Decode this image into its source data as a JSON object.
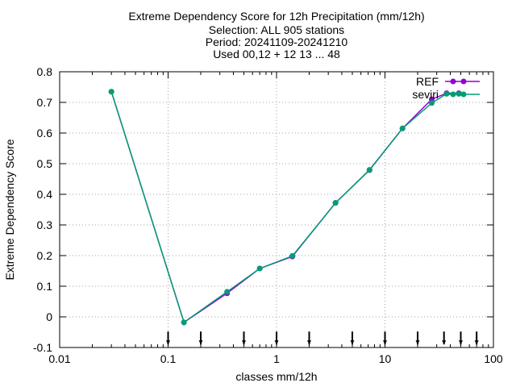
{
  "chart_data": {
    "type": "line",
    "title_lines": [
      "Extreme Dependency Score  for 12h Precipitation (mm/12h)",
      "Selection: ALL    905 stations",
      "Period: 20241109-20241210",
      "Used 00,12 + 12 13 ... 48"
    ],
    "xlabel": "classes mm/12h",
    "ylabel": "Extreme Dependency Score",
    "x_scale": "log",
    "xlim": [
      0.01,
      100
    ],
    "ylim": [
      -0.1,
      0.8
    ],
    "x_ticks": [
      0.01,
      0.1,
      1,
      10,
      100
    ],
    "x_tick_labels": [
      "0.01",
      "0.1",
      "1",
      "10",
      "100"
    ],
    "y_ticks": [
      -0.1,
      0,
      0.1,
      0.2,
      0.3,
      0.4,
      0.5,
      0.6,
      0.7,
      0.8
    ],
    "y_tick_labels": [
      "-0.1",
      "0",
      "0.1",
      "0.2",
      "0.3",
      "0.4",
      "0.5",
      "0.6",
      "0.7",
      "0.8"
    ],
    "grid": true,
    "legend_position": "top-right",
    "class_markers": [
      0.1,
      0.2,
      0.5,
      1,
      2,
      5,
      10,
      20,
      35,
      50,
      70
    ],
    "series": [
      {
        "name": "REF",
        "color": "#9400d3",
        "x": [
          0.03,
          0.14,
          0.35,
          0.7,
          1.4,
          3.5,
          7.2,
          14.5,
          27,
          37,
          48
        ],
        "y": [
          0.735,
          -0.018,
          0.077,
          0.158,
          0.197,
          0.372,
          0.479,
          0.615,
          0.71,
          0.73,
          0.73
        ]
      },
      {
        "name": "seviri",
        "color": "#009e73",
        "x": [
          0.03,
          0.14,
          0.35,
          0.7,
          1.4,
          3.5,
          7.2,
          14.5,
          27,
          37,
          48
        ],
        "y": [
          0.735,
          -0.018,
          0.082,
          0.158,
          0.199,
          0.372,
          0.48,
          0.615,
          0.698,
          0.728,
          0.728
        ]
      }
    ]
  }
}
